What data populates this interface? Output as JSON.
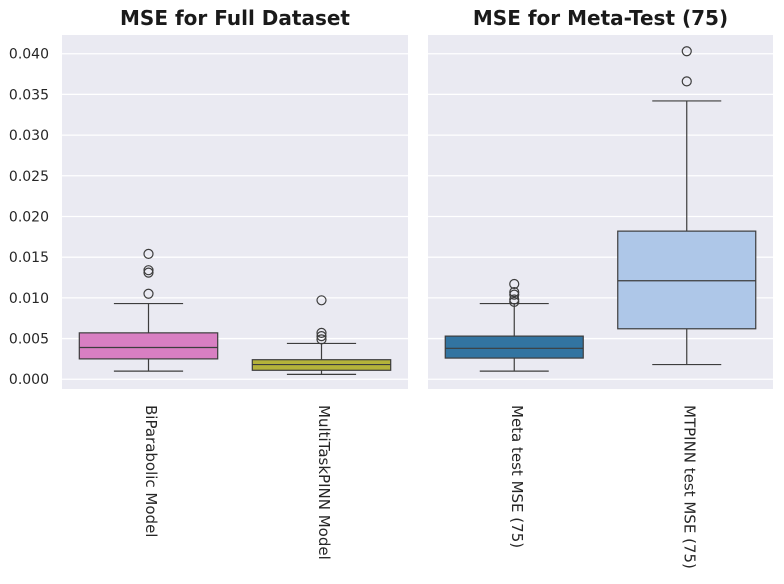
{
  "chart_data": [
    {
      "type": "box",
      "title": "MSE for Full Dataset",
      "xlabel": "",
      "ylabel": "",
      "ylim": [
        -0.0012,
        0.0423
      ],
      "yticks": [
        "0.000",
        "0.005",
        "0.010",
        "0.015",
        "0.020",
        "0.025",
        "0.030",
        "0.035",
        "0.040"
      ],
      "grid": true,
      "categories": [
        "BiParabolic Model",
        "MultiTaskPINN Model"
      ],
      "boxes": [
        {
          "category": "BiParabolic Model",
          "color": "#d87fc2",
          "whisker_low": 0.001,
          "q1": 0.0025,
          "median": 0.0039,
          "q3": 0.0057,
          "whisker_high": 0.0093,
          "outliers": [
            0.0105,
            0.0131,
            0.0134,
            0.0154
          ]
        },
        {
          "category": "MultiTaskPINN Model",
          "color": "#b4b23a",
          "whisker_low": 0.0006,
          "q1": 0.0011,
          "median": 0.0018,
          "q3": 0.0024,
          "whisker_high": 0.0044,
          "outliers": [
            0.0049,
            0.0053,
            0.0057,
            0.0097
          ]
        }
      ]
    },
    {
      "type": "box",
      "title": "MSE for Meta-Test (75)",
      "xlabel": "",
      "ylabel": "",
      "ylim": [
        -0.0012,
        0.0423
      ],
      "yticks": [
        "0.000",
        "0.005",
        "0.010",
        "0.015",
        "0.020",
        "0.025",
        "0.030",
        "0.035",
        "0.040"
      ],
      "grid": true,
      "categories": [
        "Meta test MSE (75)",
        "MTPINN test MSE (75)"
      ],
      "boxes": [
        {
          "category": "Meta test MSE (75)",
          "color": "#3274a1",
          "whisker_low": 0.001,
          "q1": 0.0026,
          "median": 0.0038,
          "q3": 0.0053,
          "whisker_high": 0.0093,
          "outliers": [
            0.0095,
            0.0098,
            0.0104,
            0.0107,
            0.0117
          ]
        },
        {
          "category": "MTPINN test MSE (75)",
          "color": "#aec7e8",
          "whisker_low": 0.0018,
          "q1": 0.0062,
          "median": 0.0121,
          "q3": 0.0182,
          "whisker_high": 0.0342,
          "outliers": [
            0.0366,
            0.0403
          ]
        }
      ]
    }
  ]
}
